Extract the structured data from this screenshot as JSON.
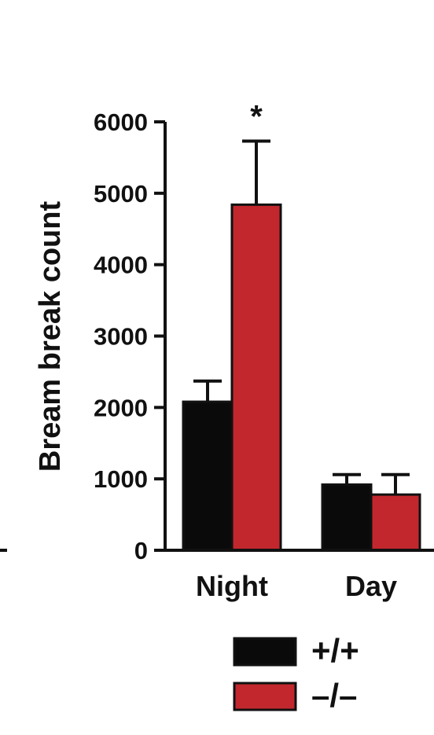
{
  "chart_data": {
    "type": "bar",
    "categories": [
      "Night",
      "Day"
    ],
    "series": [
      {
        "name": "+/+",
        "color": "#0a0a0a",
        "values": [
          2080,
          920
        ],
        "errors": [
          290,
          140
        ]
      },
      {
        "name": "–/–",
        "color": "#c1272d",
        "values": [
          4840,
          780
        ],
        "errors": [
          890,
          280
        ]
      }
    ],
    "ylabel": "Bream break count",
    "ylim": [
      0,
      6000
    ],
    "yticks": [
      "0",
      "1000",
      "2000",
      "3000",
      "4000",
      "5000",
      "6000"
    ],
    "annotations": [
      {
        "category": "Night",
        "series": 1,
        "text": "*"
      }
    ],
    "legend": {
      "placement": "bottom-right"
    },
    "grid": false
  }
}
